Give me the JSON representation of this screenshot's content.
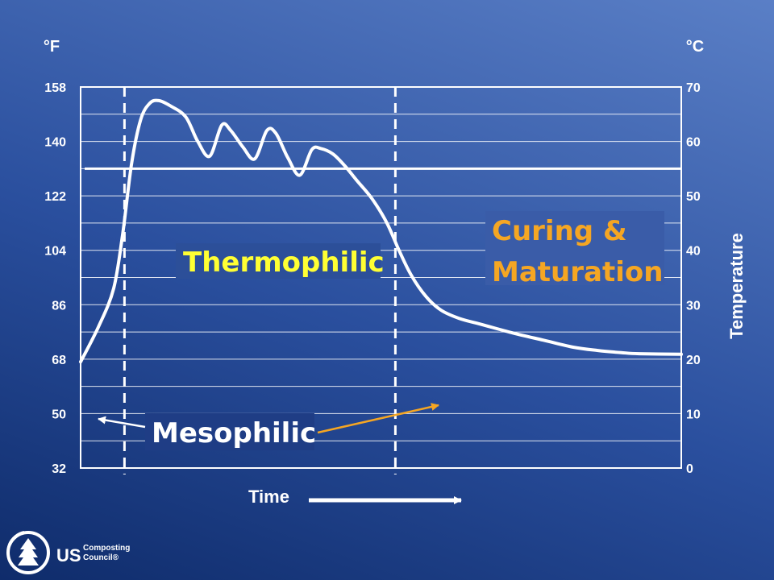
{
  "chart_data": {
    "type": "line",
    "left_axis": {
      "unit": "°F",
      "ticks": [
        "158",
        "140",
        "122",
        "104",
        "86",
        "68",
        "50",
        "32"
      ]
    },
    "right_axis": {
      "unit": "°C",
      "title": "Temperature",
      "ticks": [
        "70",
        "60",
        "50",
        "40",
        "30",
        "20",
        "10",
        "0"
      ],
      "ylim": [
        0,
        70
      ]
    },
    "xlabel": "Time",
    "threshold_c": 55,
    "series": [
      {
        "points": [
          {
            "x": 0,
            "y": 19.5
          },
          {
            "x": 3,
            "y": 26
          },
          {
            "x": 5.5,
            "y": 33
          },
          {
            "x": 7,
            "y": 43
          },
          {
            "x": 8.5,
            "y": 56
          },
          {
            "x": 10,
            "y": 64
          },
          {
            "x": 11.5,
            "y": 67
          },
          {
            "x": 13,
            "y": 67.5
          },
          {
            "x": 15,
            "y": 66.5
          },
          {
            "x": 17.5,
            "y": 64.5
          },
          {
            "x": 19.5,
            "y": 60
          },
          {
            "x": 21.5,
            "y": 57.3
          },
          {
            "x": 23.5,
            "y": 63
          },
          {
            "x": 25,
            "y": 62
          },
          {
            "x": 27,
            "y": 59
          },
          {
            "x": 29,
            "y": 56.8
          },
          {
            "x": 31,
            "y": 62
          },
          {
            "x": 32.5,
            "y": 61.5
          },
          {
            "x": 34.5,
            "y": 57
          },
          {
            "x": 36.5,
            "y": 53.8
          },
          {
            "x": 38.5,
            "y": 58.5
          },
          {
            "x": 40,
            "y": 58.7
          },
          {
            "x": 42,
            "y": 57.7
          },
          {
            "x": 44,
            "y": 55.5
          },
          {
            "x": 46,
            "y": 52.8
          },
          {
            "x": 48.5,
            "y": 49.5
          },
          {
            "x": 51,
            "y": 45
          },
          {
            "x": 53,
            "y": 40
          },
          {
            "x": 55,
            "y": 35.5
          },
          {
            "x": 57.5,
            "y": 31.5
          },
          {
            "x": 60,
            "y": 29
          },
          {
            "x": 63,
            "y": 27.5
          },
          {
            "x": 67,
            "y": 26.3
          },
          {
            "x": 72,
            "y": 24.8
          },
          {
            "x": 77,
            "y": 23.5
          },
          {
            "x": 82,
            "y": 22.2
          },
          {
            "x": 86,
            "y": 21.6
          },
          {
            "x": 90,
            "y": 21.2
          },
          {
            "x": 93,
            "y": 21
          },
          {
            "x": 100,
            "y": 20.9
          }
        ]
      }
    ],
    "phase_boundaries_x": [
      7.3,
      52.4
    ],
    "phases": [
      {
        "label": "Mesophilic",
        "color": "#ffffff"
      },
      {
        "label": "Thermophilic",
        "color": "#ffff33"
      },
      {
        "label": "Curing & Maturation",
        "label_line1": "Curing &",
        "label_line2": "Maturation",
        "color": "#f5a623"
      }
    ],
    "grid": true
  },
  "logo": {
    "us": "US",
    "line1": "Composting",
    "line2": "Council®"
  }
}
